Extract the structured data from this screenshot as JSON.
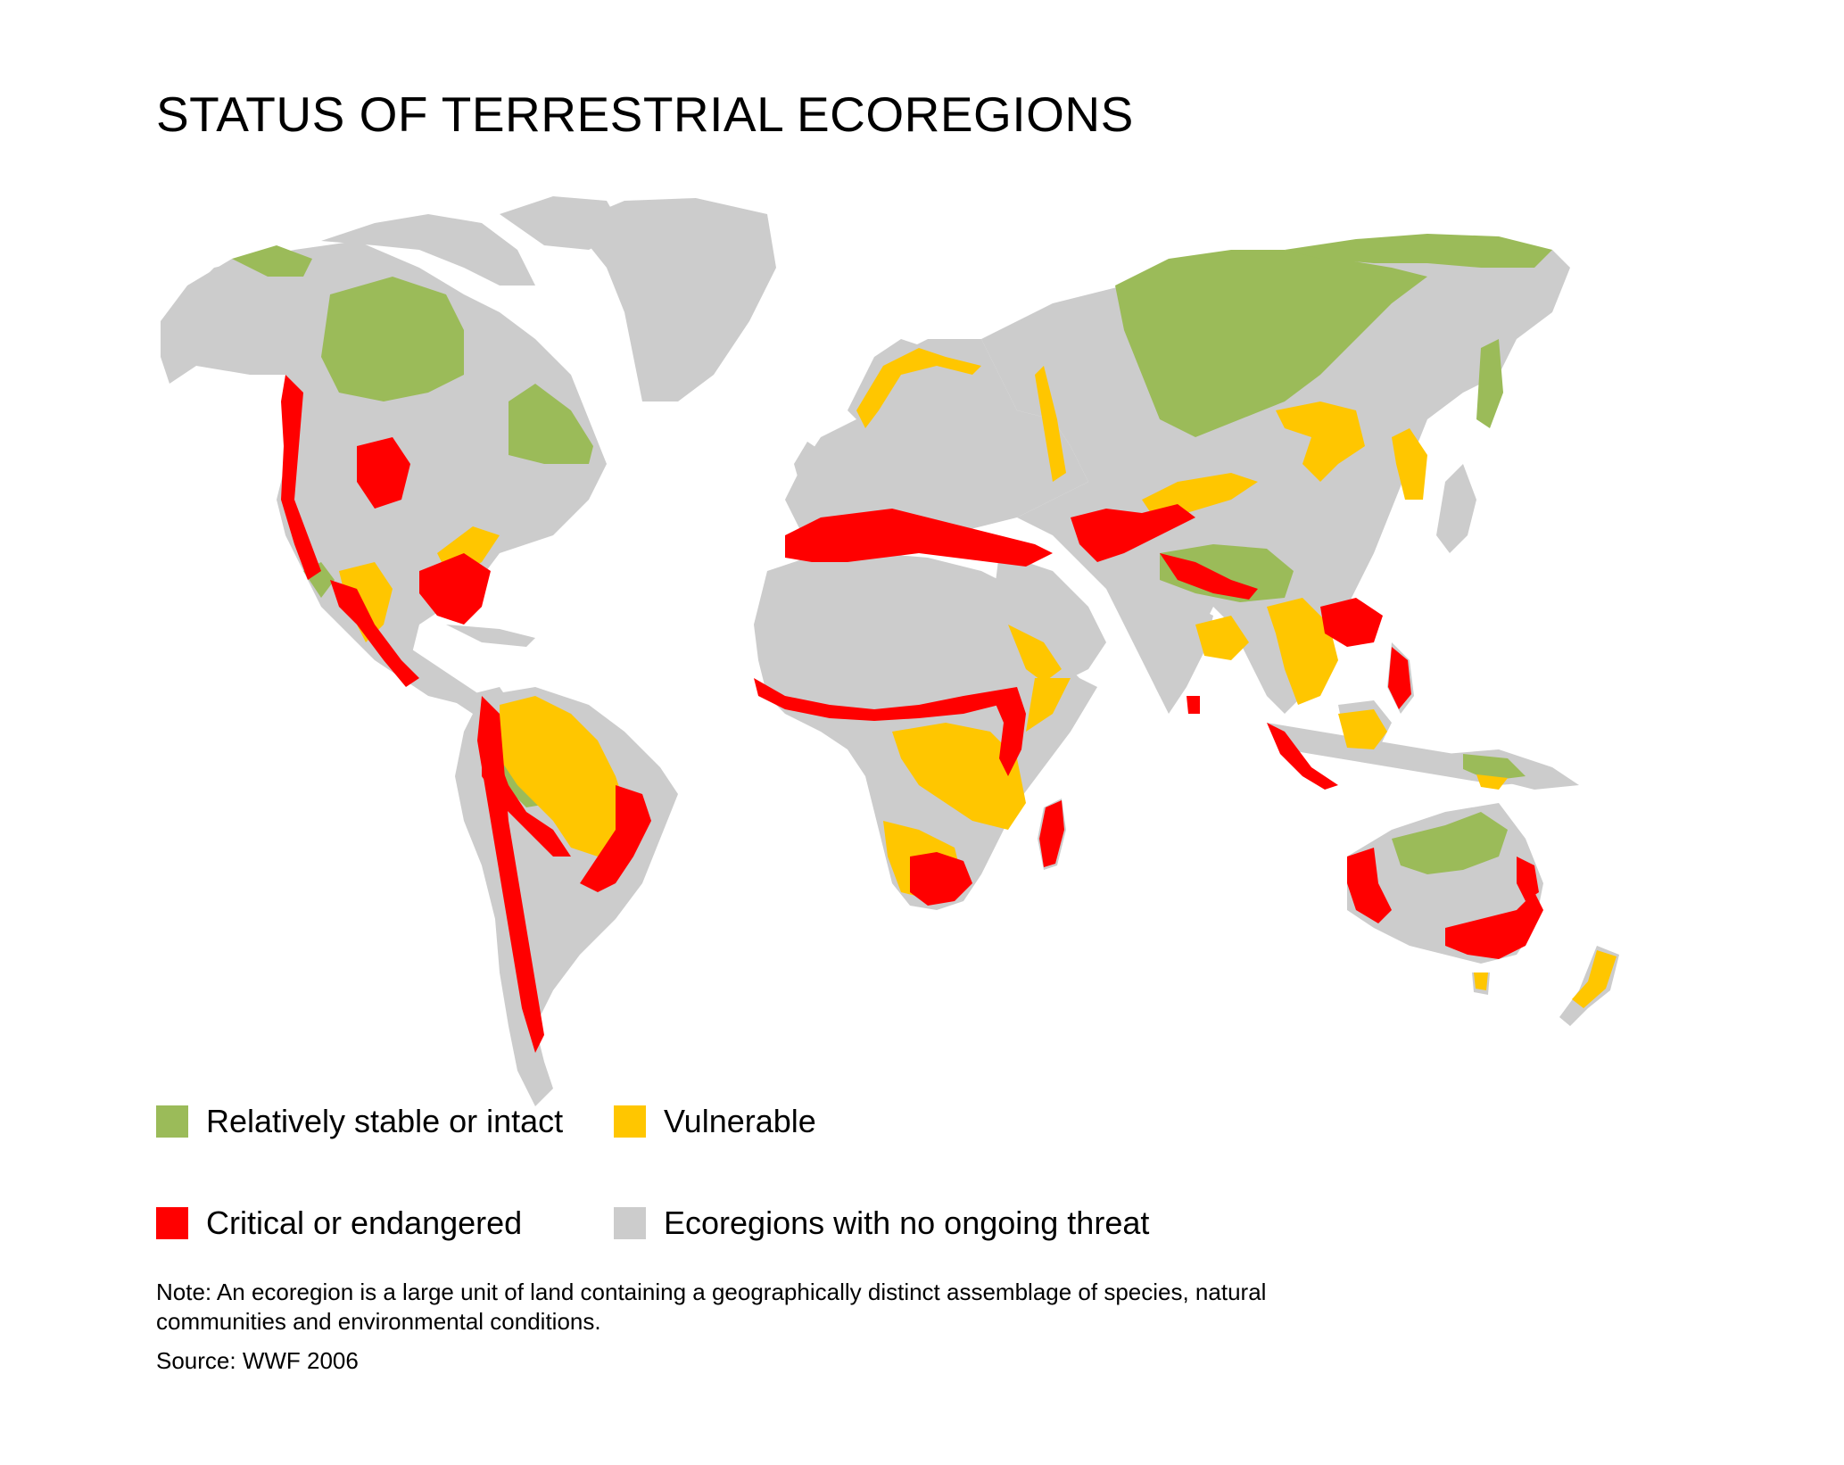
{
  "title": "STATUS OF TERRESTRIAL ECOREGIONS",
  "legend": [
    {
      "label": "Relatively stable or intact",
      "color": "#9bbb59"
    },
    {
      "label": "Vulnerable",
      "color": "#ffc600"
    },
    {
      "label": "Critical or endangered",
      "color": "#ff0000"
    },
    {
      "label": "Ecoregions with no ongoing threat",
      "color": "#cccccc"
    }
  ],
  "colors": {
    "land": "#cccccc",
    "stable": "#9bbb59",
    "vulnerable": "#ffc600",
    "critical": "#ff0000",
    "ocean": "#ffffff"
  },
  "note": "Note: An ecoregion is a large unit of land containing a geographically distinct assemblage of species, natural communities and environmental conditions.",
  "source": "Source: WWF 2006"
}
